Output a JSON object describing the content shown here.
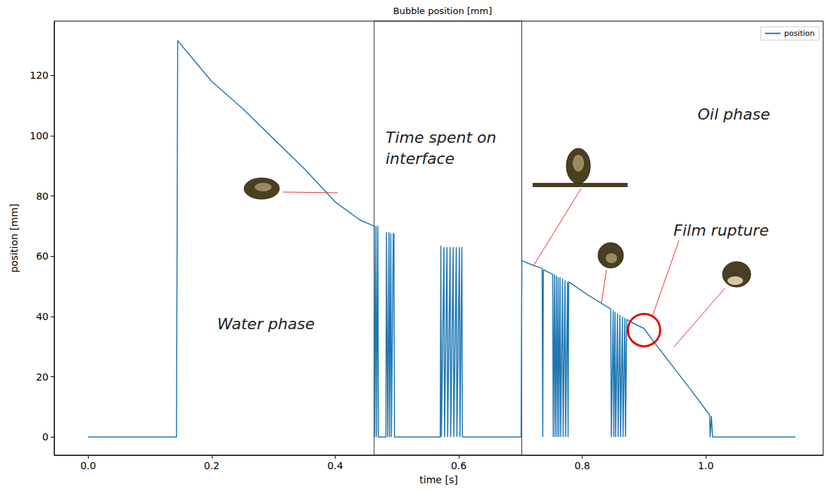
{
  "chart_data": {
    "type": "line",
    "title": "Bubble position [mm]",
    "x_label": "time [s]",
    "y_label": "position [mm]",
    "x": [
      0,
      0.143,
      0.145,
      0.2,
      0.25,
      0.3,
      0.35,
      0.4,
      0.44,
      0.463,
      0.464,
      0.466,
      0.467,
      0.469,
      0.47,
      0.482,
      0.483,
      0.485,
      0.487,
      0.488,
      0.49,
      0.491,
      0.494,
      0.495,
      0.496,
      0.57,
      0.571,
      0.572,
      0.576,
      0.577,
      0.581,
      0.582,
      0.586,
      0.587,
      0.591,
      0.592,
      0.596,
      0.597,
      0.601,
      0.602,
      0.605,
      0.606,
      0.701,
      0.702,
      0.72,
      0.735,
      0.736,
      0.737,
      0.752,
      0.753,
      0.755,
      0.756,
      0.758,
      0.759,
      0.761,
      0.762,
      0.764,
      0.765,
      0.768,
      0.769,
      0.772,
      0.773,
      0.776,
      0.777,
      0.778,
      0.81,
      0.846,
      0.847,
      0.85,
      0.851,
      0.853,
      0.854,
      0.857,
      0.858,
      0.861,
      0.862,
      0.865,
      0.866,
      0.869,
      0.87,
      0.872,
      0.88,
      0.9,
      0.92,
      0.95,
      0.98,
      1.0,
      1.006,
      1.007,
      1.009,
      1.011,
      1.145
    ],
    "series": [
      {
        "name": "position",
        "color": "#1f77b4",
        "values": [
          0,
          0,
          131.5,
          118,
          109,
          99,
          89,
          78,
          72,
          70,
          0,
          70,
          0,
          70,
          0,
          0,
          68,
          0,
          68,
          0,
          67.5,
          0,
          67.5,
          67.5,
          0,
          0,
          63.5,
          0,
          63,
          0,
          63,
          0,
          63,
          0,
          63,
          0,
          63,
          0,
          63,
          0,
          63,
          0,
          0,
          58.5,
          57,
          56,
          0,
          55.5,
          54,
          0,
          54,
          0,
          53.5,
          0,
          53,
          0,
          53,
          0,
          52.5,
          0,
          52,
          0,
          51.5,
          0,
          51.5,
          47,
          42.5,
          0,
          42,
          0,
          41.5,
          0,
          41,
          0,
          40.5,
          0,
          40,
          0,
          39.5,
          0,
          39,
          38,
          36,
          30.5,
          22.5,
          14.5,
          9,
          7.5,
          0,
          7,
          0,
          0
        ]
      }
    ],
    "xlim": [
      -0.055,
      1.19
    ],
    "xticks": [
      {
        "value": 0,
        "label": "0.0"
      },
      {
        "value": 0.2,
        "label": "0.2"
      },
      {
        "value": 0.4,
        "label": "0.4"
      },
      {
        "value": 0.6,
        "label": "0.6"
      },
      {
        "value": 0.8,
        "label": "0.8"
      },
      {
        "value": 1,
        "label": "1.0"
      }
    ],
    "ylim": [
      -6,
      138
    ],
    "yticks": [
      0,
      20,
      40,
      60,
      80,
      100,
      120
    ],
    "annotations": [
      "Water phase",
      "Time spent on interface",
      "Oil phase",
      "Film rupture"
    ],
    "interface_span": [
      0.463,
      0.702
    ],
    "film_rupture": [
      0.9,
      35.5
    ],
    "legend": "upper right",
    "grid": false
  }
}
